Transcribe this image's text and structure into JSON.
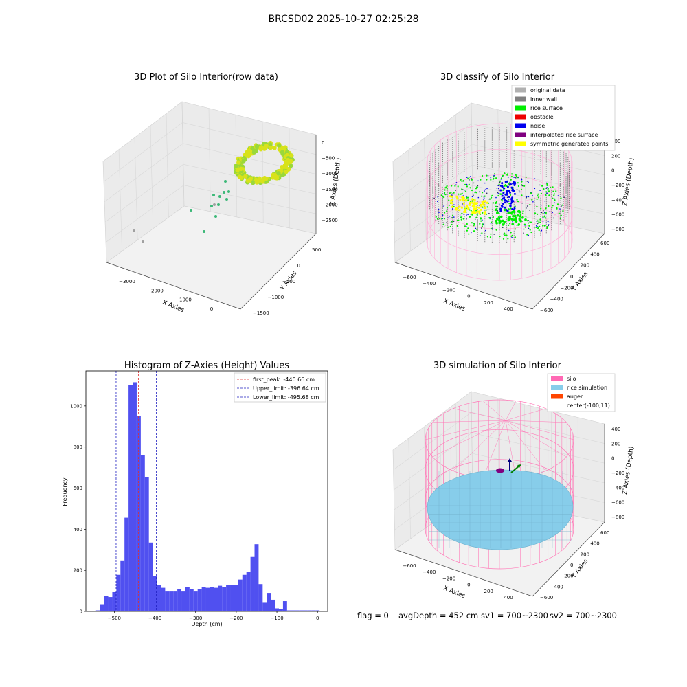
{
  "suptitle": "BRCSD02 2025-10-27 02:25:28",
  "footer": {
    "flag": "flag = 0",
    "avg_depth": "avgDepth = 452 cm",
    "sv1": "sv1 = 700~2300",
    "sv2": "sv2 = 700~2300"
  },
  "colors": {
    "bar": "#5050f0",
    "first_peak": "#e03030",
    "limits": "#2020c0",
    "original": "#b0b0b0",
    "inner_wall": "#808080",
    "rice_surface": "#00ee00",
    "obstacle": "#ee0000",
    "noise": "#0000ee",
    "interpolated": "#800080",
    "symmetric": "#ffff00",
    "silo": "#ff69b4",
    "rice_sim": "#87cdea",
    "auger": "#ff4500"
  },
  "panels": {
    "raw": {
      "title": "3D Plot of Silo Interior(row data)",
      "xlabel": "X Axies",
      "ylabel": "Y Axies",
      "zlabel": "Z Axies (Depth)",
      "xticks": [
        "−3000",
        "−2000",
        "−1000",
        "0"
      ],
      "yticks": [
        "500",
        "0",
        "−500",
        "−1000",
        "−1500"
      ],
      "zticks": [
        "0",
        "−500",
        "−1000",
        "−1500",
        "−2000",
        "−2500"
      ]
    },
    "classify": {
      "title": "3D classify of Silo Interior",
      "xlabel": "X Axies",
      "ylabel": "Y Axies",
      "zlabel": "Z Axies (Depth)",
      "xticks": [
        "−600",
        "−400",
        "−200",
        "0",
        "200",
        "400"
      ],
      "yticks": [
        "600",
        "400",
        "200",
        "0",
        "−200",
        "−400",
        "−600"
      ],
      "zticks": [
        "400",
        "200",
        "0",
        "−200",
        "−400",
        "−600",
        "−800"
      ],
      "legend": [
        {
          "label": "original data",
          "color": "#b0b0b0"
        },
        {
          "label": "inner wall",
          "color": "#808080"
        },
        {
          "label": "rice surface",
          "color": "#00ee00"
        },
        {
          "label": "obstacle",
          "color": "#ee0000"
        },
        {
          "label": "noise",
          "color": "#0000ee"
        },
        {
          "label": "interpolated rice surface",
          "color": "#800080"
        },
        {
          "label": "symmetric generated points",
          "color": "#ffff00"
        }
      ]
    },
    "sim": {
      "title": "3D simulation of Silo Interior",
      "xlabel": "X Axies",
      "ylabel": "Y Axies",
      "zlabel": "Z Axies (Depth)",
      "xticks": [
        "−600",
        "−400",
        "−200",
        "0",
        "200",
        "400"
      ],
      "yticks": [
        "600",
        "400",
        "200",
        "0",
        "−200",
        "−400",
        "−600"
      ],
      "zticks": [
        "400",
        "200",
        "0",
        "−200",
        "−400",
        "−600",
        "−800"
      ],
      "legend": [
        {
          "label": "silo",
          "color": "#ff69b4"
        },
        {
          "label": "rice simulation",
          "color": "#87cdea"
        },
        {
          "label": "auger",
          "color": "#ff4500"
        },
        {
          "label": "center(-100,11)",
          "color": ""
        }
      ]
    }
  },
  "chart_data": {
    "type": "bar",
    "title": "Histogram of Z-Axies (Height) Values",
    "xlabel": "Depth (cm)",
    "ylabel": "Frequency",
    "xlim": [
      -570,
      25
    ],
    "ylim": [
      0,
      1170
    ],
    "xticks": [
      -500,
      -400,
      -300,
      -200,
      -100,
      0
    ],
    "yticks": [
      0,
      200,
      400,
      600,
      800,
      1000
    ],
    "bin_width": 10,
    "bin_starts": [
      -545,
      -535,
      -525,
      -515,
      -505,
      -495,
      -485,
      -475,
      -465,
      -455,
      -445,
      -435,
      -425,
      -415,
      -405,
      -395,
      -385,
      -375,
      -365,
      -355,
      -345,
      -335,
      -325,
      -315,
      -305,
      -295,
      -285,
      -275,
      -265,
      -255,
      -245,
      -235,
      -225,
      -215,
      -205,
      -195,
      -185,
      -175,
      -165,
      -155,
      -145,
      -135,
      -125,
      -115,
      -105,
      -95,
      -85,
      -75,
      -65,
      -55,
      -45,
      -35,
      -25,
      -15,
      -5
    ],
    "values": [
      5,
      35,
      75,
      70,
      97,
      178,
      248,
      456,
      1100,
      1115,
      950,
      760,
      655,
      335,
      172,
      127,
      115,
      100,
      100,
      100,
      107,
      100,
      120,
      110,
      100,
      110,
      117,
      115,
      118,
      115,
      125,
      120,
      127,
      128,
      130,
      155,
      178,
      193,
      265,
      327,
      133,
      42,
      90,
      57,
      15,
      12,
      50,
      5,
      5,
      5,
      5,
      5,
      5,
      5,
      5
    ],
    "vlines": [
      {
        "x": -440.66,
        "label": "first_peak: -440.66 cm",
        "color": "#e03030"
      },
      {
        "x": -396.64,
        "label": "Upper_limit: -396.64 cm",
        "color": "#2020c0"
      },
      {
        "x": -495.68,
        "label": "Lower_limit: -495.68 cm",
        "color": "#2020c0"
      }
    ],
    "legend_position": "upper right"
  }
}
